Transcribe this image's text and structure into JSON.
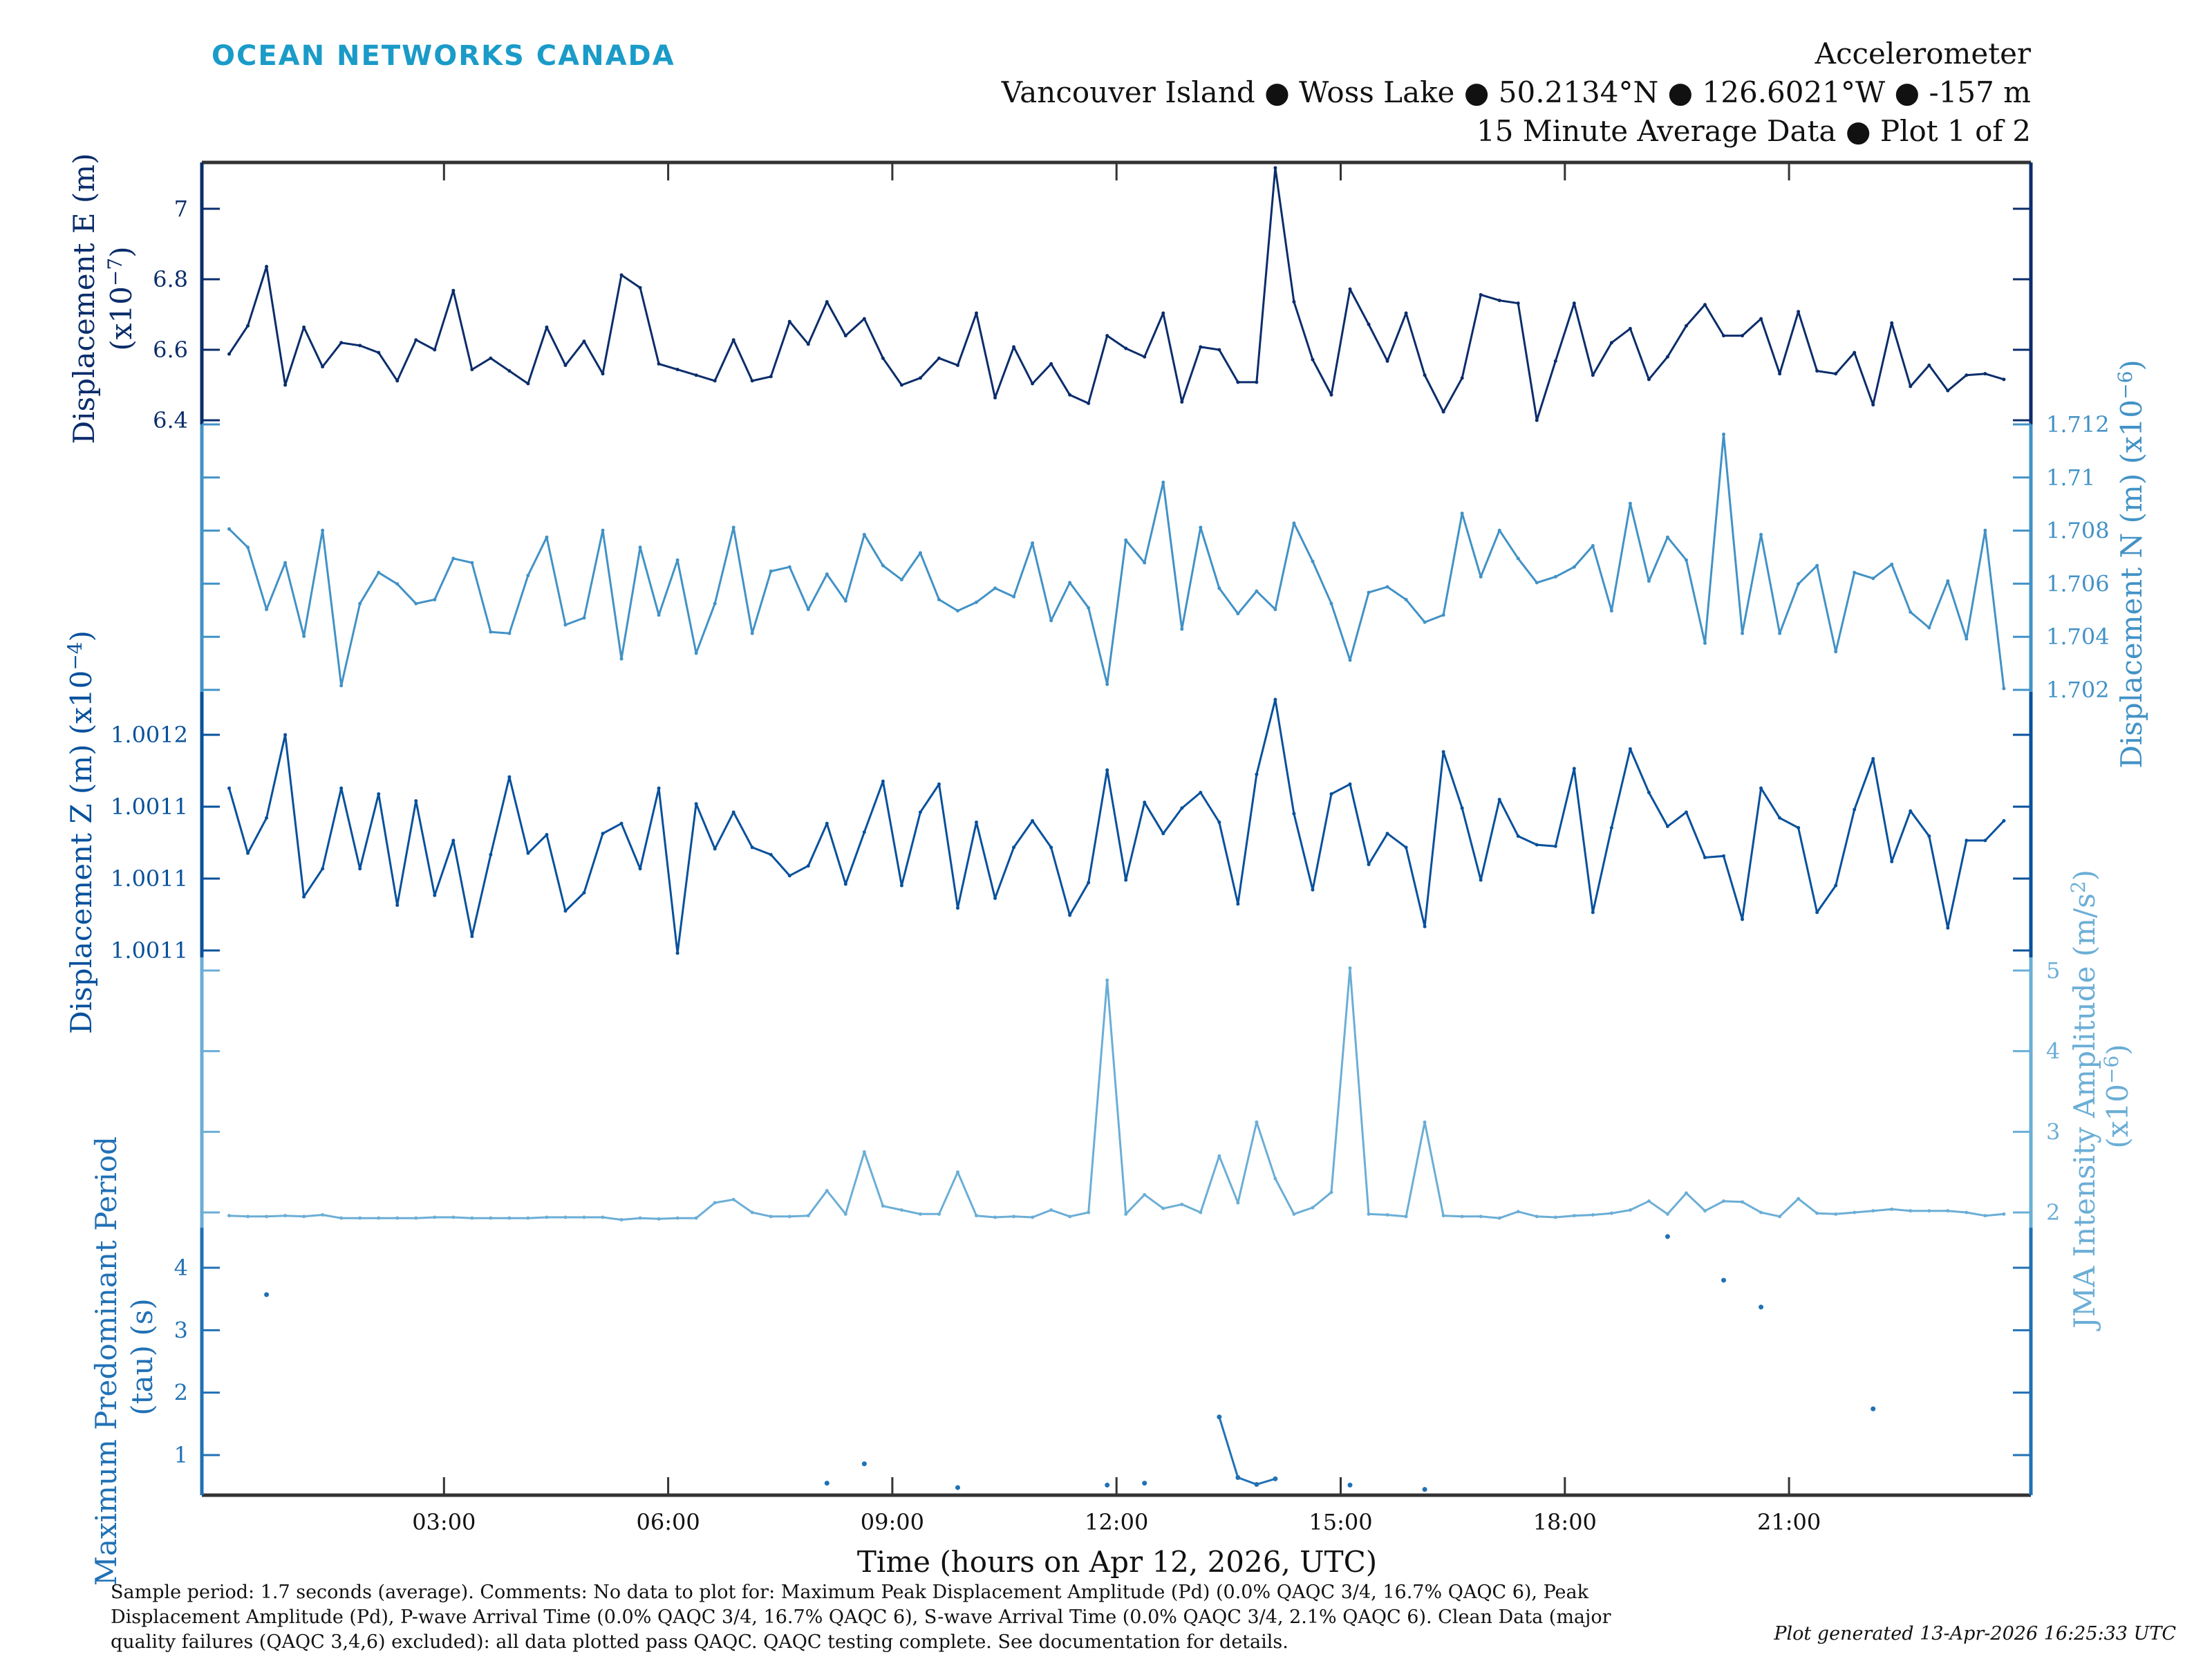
{
  "header": {
    "logo_text": "OCEAN NETWORKS CANADA",
    "title": "Accelerometer",
    "location": "Vancouver Island ● Woss Lake ● 50.2134°N ● 126.6021°W ● -157 m",
    "subtitle": "15 Minute Average Data ● Plot 1 of 2"
  },
  "footer": {
    "comment_lines": [
      "Sample period: 1.7 seconds (average). Comments: No data to plot for: Maximum Peak Displacement Amplitude (Pd) (0.0% QAQC 3/4, 16.7% QAQC 6), Peak",
      "Displacement Amplitude (Pd), P-wave Arrival Time (0.0% QAQC 3/4, 16.7% QAQC 6), S-wave Arrival Time (0.0% QAQC 3/4, 2.1% QAQC 6). Clean Data (major",
      "quality failures (QAQC 3,4,6) excluded): all data plotted pass QAQC. QAQC testing complete. See documentation for details."
    ],
    "generated": "Plot generated 13-Apr-2026 16:25:33 UTC"
  },
  "colors": {
    "logo": "#1a9bc8",
    "E": "#0b2d6b",
    "N": "#4292c6",
    "Z": "#08519c",
    "JMA": "#6baed6",
    "tau": "#2171b5",
    "frame": "#333333"
  },
  "chart_data": {
    "type": "line",
    "xlabel": "Time (hours on Apr 12, 2026, UTC)",
    "x_range_hours": [
      -0.25,
      24.2
    ],
    "x_ticks": [
      "03:00",
      "06:00",
      "09:00",
      "12:00",
      "15:00",
      "18:00",
      "21:00"
    ],
    "x_tick_hours": [
      3,
      6,
      9,
      12,
      15,
      18,
      21
    ],
    "x_start_hour": 0.125,
    "x_step_hours": 0.25,
    "panels": [
      {
        "key": "E",
        "side": "left",
        "ylabel": "Displacement E (m)",
        "scale_prefix": "(x10",
        "scale_exp": "−7",
        "scale_suffix": ")",
        "ticks": [
          6.4,
          6.6,
          6.8,
          7.0
        ],
        "tick_labels": [
          "6.4",
          "6.6",
          "6.8",
          "7"
        ],
        "values": [
          6.588,
          6.668,
          6.836,
          6.5,
          6.664,
          6.552,
          6.62,
          6.612,
          6.592,
          6.512,
          6.628,
          6.6,
          6.768,
          6.544,
          6.576,
          6.54,
          6.504,
          6.664,
          6.556,
          6.624,
          6.532,
          6.812,
          6.776,
          6.56,
          6.544,
          6.528,
          6.512,
          6.628,
          6.512,
          6.524,
          6.68,
          6.616,
          6.736,
          6.64,
          6.688,
          6.576,
          6.5,
          6.52,
          6.576,
          6.556,
          6.704,
          6.464,
          6.608,
          6.504,
          6.56,
          6.472,
          6.448,
          6.64,
          6.604,
          6.58,
          6.704,
          6.452,
          6.608,
          6.6,
          6.508,
          6.508,
          7.116,
          6.736,
          6.572,
          6.472,
          6.772,
          6.672,
          6.568,
          6.704,
          6.528,
          6.424,
          6.52,
          6.756,
          6.74,
          6.732,
          6.4,
          6.568,
          6.732,
          6.528,
          6.62,
          6.66,
          6.516,
          6.58,
          6.668,
          6.728,
          6.64,
          6.64,
          6.688,
          6.532,
          6.708,
          6.54,
          6.532,
          6.592,
          6.444,
          6.676,
          6.496,
          6.556,
          6.484,
          6.528,
          6.532,
          6.516
        ]
      },
      {
        "key": "N",
        "side": "right",
        "ylabel": "Displacement N (m)",
        "scale_prefix": "(x10",
        "scale_exp": "−6",
        "scale_suffix": ")",
        "ticks": [
          1.702,
          1.704,
          1.706,
          1.708,
          1.71,
          1.712
        ],
        "tick_labels": [
          "1.702",
          "1.704",
          "1.706",
          "1.708",
          "1.71",
          "1.712"
        ],
        "values": [
          1.70806,
          1.70737,
          1.70503,
          1.70679,
          1.70402,
          1.70801,
          1.70216,
          1.70525,
          1.70642,
          1.70599,
          1.70525,
          1.7054,
          1.70695,
          1.70679,
          1.70418,
          1.70413,
          1.70631,
          1.70775,
          1.70445,
          1.70471,
          1.70801,
          1.70317,
          1.70737,
          1.70482,
          1.70689,
          1.70338,
          1.70525,
          1.70812,
          1.70413,
          1.70647,
          1.70663,
          1.70503,
          1.70636,
          1.70535,
          1.70785,
          1.70668,
          1.70615,
          1.70716,
          1.7054,
          1.70498,
          1.7053,
          1.70583,
          1.70551,
          1.70753,
          1.70461,
          1.70604,
          1.70509,
          1.70221,
          1.70764,
          1.70679,
          1.70982,
          1.70429,
          1.70812,
          1.70583,
          1.70487,
          1.70572,
          1.70503,
          1.70828,
          1.70684,
          1.70525,
          1.70312,
          1.70567,
          1.70588,
          1.7054,
          1.70455,
          1.70482,
          1.70865,
          1.70626,
          1.70801,
          1.70695,
          1.70604,
          1.70626,
          1.70663,
          1.70743,
          1.70498,
          1.70902,
          1.7061,
          1.70775,
          1.70689,
          1.70376,
          1.71163,
          1.70413,
          1.70785,
          1.70413,
          1.70599,
          1.70668,
          1.70344,
          1.70642,
          1.7062,
          1.70673,
          1.70493,
          1.70434,
          1.7061,
          1.70392,
          1.70801,
          1.70205
        ]
      },
      {
        "key": "Z",
        "side": "left",
        "ylabel": "Displacement Z (m)",
        "scale_prefix": "(x10",
        "scale_exp": "−4",
        "scale_suffix": ")",
        "ticks": [
          1.00107,
          1.0011,
          1.00113,
          1.00116
        ],
        "tick_labels": [
          "1.0011",
          "1.0011",
          "1.0011",
          "1.0012"
        ],
        "values": [
          1.0011377,
          1.0011106,
          1.0011253,
          1.00116,
          1.0010924,
          1.0011041,
          1.0011377,
          1.0011041,
          1.0011353,
          1.0010889,
          1.0011324,
          1.001093,
          1.0011159,
          1.0010759,
          1.00111,
          1.0011424,
          1.0011106,
          1.0011183,
          1.0010865,
          1.0010941,
          1.0011188,
          1.001123,
          1.0011041,
          1.0011377,
          1.0010689,
          1.0011312,
          1.0011124,
          1.0011277,
          1.001113,
          1.00111,
          1.0011012,
          1.0011053,
          1.001123,
          1.0010977,
          1.0011194,
          1.0011406,
          1.0010971,
          1.0011277,
          1.0011394,
          1.0010877,
          1.0011235,
          1.0010918,
          1.001113,
          1.0011241,
          1.001113,
          1.0010847,
          1.0010983,
          1.0011453,
          1.0010994,
          1.0011318,
          1.0011188,
          1.0011294,
          1.0011359,
          1.0011235,
          1.0010894,
          1.0011435,
          1.0011747,
          1.0011271,
          1.0010953,
          1.0011353,
          1.0011394,
          1.0011059,
          1.0011188,
          1.001113,
          1.00108,
          1.0011529,
          1.0011294,
          1.0010994,
          1.001133,
          1.0011177,
          1.0011141,
          1.0011135,
          1.0011459,
          1.0010859,
          1.0011212,
          1.0011541,
          1.0011359,
          1.0011218,
          1.0011277,
          1.0011088,
          1.0011094,
          1.001083,
          1.0011377,
          1.0011253,
          1.0011212,
          1.0010859,
          1.0010971,
          1.0011288,
          1.00115,
          1.0011071,
          1.0011282,
          1.0011177,
          1.0010794,
          1.0011159,
          1.0011159,
          1.0011241
        ]
      },
      {
        "key": "JMA",
        "side": "right",
        "ylabel": "JMA Intensity Amplitude (m/s",
        "ylabel_sup": "2",
        "ylabel_close": ")",
        "scale_prefix": "(x10",
        "scale_exp": "−6",
        "scale_suffix": ")",
        "ticks": [
          2,
          3,
          4,
          5
        ],
        "tick_labels": [
          "2",
          "3",
          "4",
          "5"
        ],
        "values": [
          1.96,
          1.95,
          1.95,
          1.96,
          1.95,
          1.97,
          1.93,
          1.93,
          1.93,
          1.93,
          1.93,
          1.94,
          1.94,
          1.93,
          1.93,
          1.93,
          1.93,
          1.94,
          1.94,
          1.94,
          1.94,
          1.91,
          1.93,
          1.92,
          1.93,
          1.93,
          2.12,
          2.16,
          2.0,
          1.95,
          1.95,
          1.96,
          2.27,
          1.98,
          2.75,
          2.08,
          2.03,
          1.98,
          1.98,
          2.5,
          1.96,
          1.94,
          1.95,
          1.94,
          2.03,
          1.95,
          2.0,
          4.88,
          1.98,
          2.22,
          2.05,
          2.1,
          2.0,
          2.7,
          2.12,
          3.12,
          2.42,
          1.98,
          2.06,
          2.25,
          5.03,
          1.98,
          1.97,
          1.95,
          3.12,
          1.96,
          1.95,
          1.95,
          1.93,
          2.01,
          1.95,
          1.94,
          1.96,
          1.97,
          1.99,
          2.03,
          2.14,
          1.98,
          2.24,
          2.02,
          2.14,
          2.13,
          2.0,
          1.95,
          2.17,
          1.99,
          1.98,
          2.0,
          2.02,
          2.04,
          2.02,
          2.02,
          2.02,
          2.0,
          1.96,
          1.98
        ]
      },
      {
        "key": "tau",
        "side": "left",
        "ylabel": "Maximum Predominant Period",
        "ylabel2": "(tau) (s)",
        "ticks": [
          1,
          2,
          3,
          4
        ],
        "tick_labels": [
          "1",
          "2",
          "3",
          "4"
        ],
        "points": [
          [
            0.625,
            3.57
          ],
          [
            8.125,
            0.55
          ],
          [
            8.625,
            0.86
          ],
          [
            9.875,
            0.48
          ],
          [
            11.875,
            0.52
          ],
          [
            12.375,
            0.55
          ],
          [
            13.375,
            1.61
          ],
          [
            13.625,
            0.64
          ],
          [
            13.875,
            0.53
          ],
          [
            14.125,
            0.62
          ],
          [
            15.125,
            0.52
          ],
          [
            16.125,
            0.45
          ],
          [
            19.375,
            4.5
          ],
          [
            20.125,
            3.8
          ],
          [
            20.625,
            3.37
          ],
          [
            22.125,
            1.74
          ]
        ]
      }
    ]
  }
}
